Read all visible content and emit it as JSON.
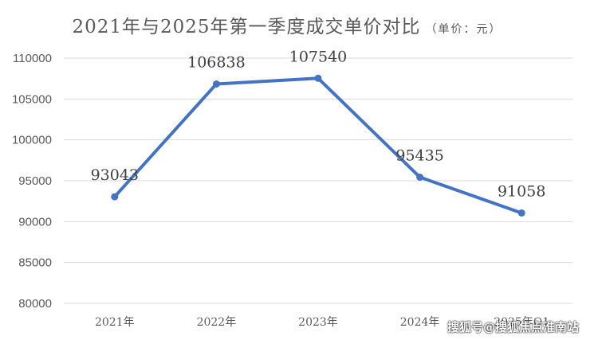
{
  "chart_data": {
    "type": "line",
    "title": "2021年与2025年第一季度成交单价对比",
    "title_unit": "（单价：元）",
    "categories": [
      "2021年",
      "2022年",
      "2023年",
      "2024年",
      "2025年Q1"
    ],
    "series": [
      {
        "values": [
          93043,
          106838,
          107540,
          95435,
          91058
        ]
      }
    ],
    "ylim": [
      80000,
      110000
    ],
    "yticks": [
      80000,
      85000,
      90000,
      95000,
      100000,
      105000,
      110000
    ],
    "grid": true,
    "legend": "none",
    "line_color": "#4472c4"
  },
  "watermark": "搜狐号@搜狐焦点淮南站"
}
